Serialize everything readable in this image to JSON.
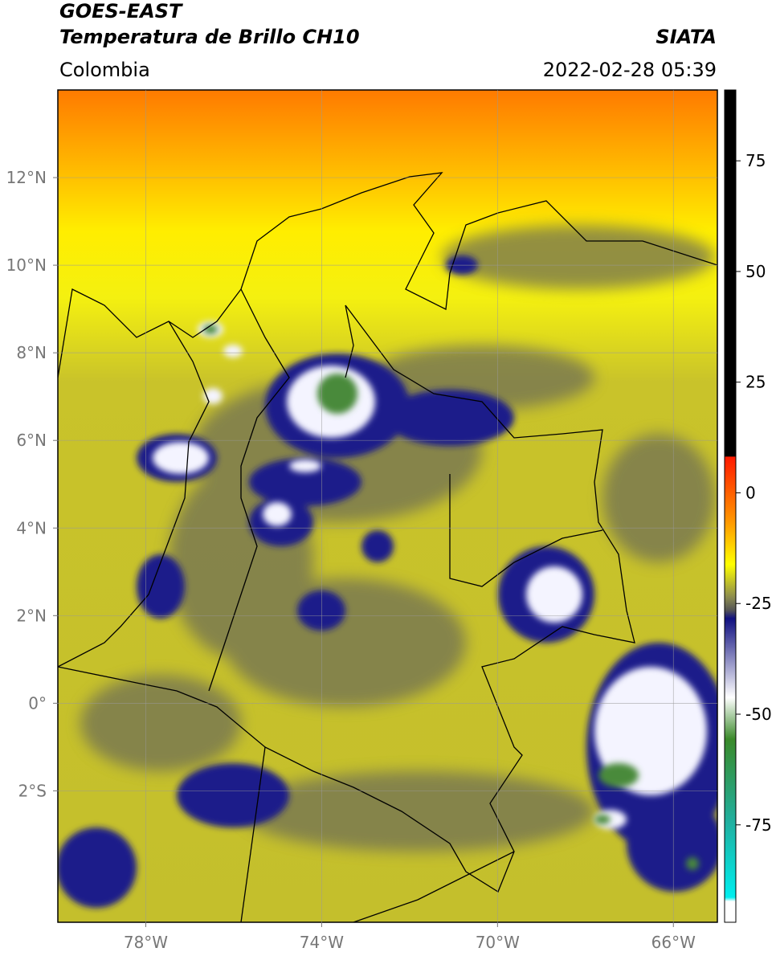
{
  "header": {
    "title_line1": "GOES-EAST",
    "title_line2": "Temperatura de Brillo CH10",
    "region": "Colombia",
    "source": "SIATA",
    "timestamp": "2022-02-28 05:39"
  },
  "map": {
    "lonlim": [
      -80,
      -65
    ],
    "latlim": [
      -5,
      14
    ],
    "grid": true,
    "lon_ticks": [
      {
        "value": -78,
        "label": "78°W"
      },
      {
        "value": -74,
        "label": "74°W"
      },
      {
        "value": -70,
        "label": "70°W"
      },
      {
        "value": -66,
        "label": "66°W"
      }
    ],
    "lat_ticks": [
      {
        "value": 12,
        "label": "12°N"
      },
      {
        "value": 10,
        "label": "10°N"
      },
      {
        "value": 8,
        "label": "8°N"
      },
      {
        "value": 6,
        "label": "6°N"
      },
      {
        "value": 4,
        "label": "4°N"
      },
      {
        "value": 2,
        "label": "2°N"
      },
      {
        "value": 0,
        "label": "0°"
      },
      {
        "value": -2,
        "label": "2°S"
      }
    ]
  },
  "colorbar": {
    "range": [
      -97,
      91
    ],
    "ticks": [
      75,
      50,
      25,
      0,
      -25,
      -50,
      -75
    ]
  }
}
